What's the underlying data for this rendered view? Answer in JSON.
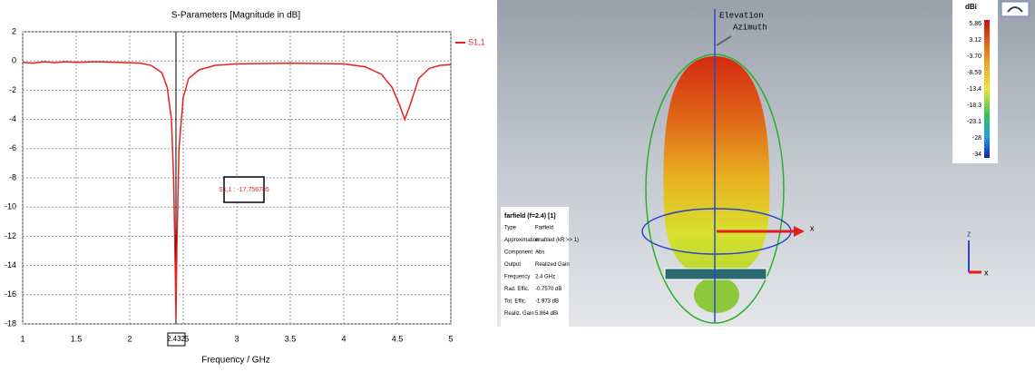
{
  "chart_data": {
    "type": "line",
    "title": "S-Parameters [Magnitude in dB]",
    "x_label": "Frequency / GHz",
    "x": [
      1,
      1.1,
      1.2,
      1.3,
      1.4,
      1.5,
      1.7,
      1.9,
      2.1,
      2.2,
      2.3,
      2.35,
      2.39,
      2.41,
      2.425,
      2.432,
      2.44,
      2.46,
      2.5,
      2.55,
      2.65,
      2.8,
      3,
      3.5,
      4,
      4.2,
      4.35,
      4.45,
      4.52,
      4.57,
      4.62,
      4.7,
      4.8,
      4.9,
      5
    ],
    "series": [
      {
        "name": "S1,1",
        "color": "#e52222",
        "values": [
          -0.1,
          -0.15,
          -0.05,
          -0.12,
          -0.05,
          -0.1,
          -0.05,
          -0.1,
          -0.15,
          -0.3,
          -0.8,
          -1.8,
          -4,
          -8,
          -14,
          -17.76,
          -13,
          -6,
          -2.5,
          -1.2,
          -0.6,
          -0.3,
          -0.2,
          -0.15,
          -0.2,
          -0.4,
          -0.9,
          -1.8,
          -3,
          -4,
          -3,
          -1.2,
          -0.5,
          -0.3,
          -0.25
        ]
      }
    ],
    "xlim": [
      1,
      5
    ],
    "ylim": [
      -18,
      2
    ],
    "xticks": [
      1,
      1.5,
      2,
      2.5,
      3,
      3.5,
      4,
      4.5,
      5
    ],
    "yticks": [
      2,
      0,
      -2,
      -4,
      -6,
      -8,
      -10,
      -12,
      -14,
      -16,
      -18
    ],
    "grid": true,
    "legend": "right",
    "marker_x": 2.432,
    "annotation": "S1,1 : -17.756785"
  },
  "farfield": {
    "elevation": "Elevation",
    "azimuth": "Azimuth",
    "axis_x": "x",
    "triad_z": "z",
    "triad_x": "x",
    "colorbar_unit": "dBi",
    "colorbar_labels": [
      "5.86",
      "3.12",
      "-3.70",
      "-8.59",
      "-13.4",
      "-18.3",
      "-23.1",
      "-28",
      "-34"
    ],
    "info_title": "farfield (f=2.4) [1]",
    "info_rows": [
      [
        "Type",
        "Farfield"
      ],
      [
        "Approximation",
        "enabled (kR >> 1)"
      ],
      [
        "Component",
        "Abs"
      ],
      [
        "Output",
        "Realized Gain"
      ],
      [
        "Frequency",
        "2.4 GHz"
      ],
      [
        "Rad. Effic.",
        "-0.7570 dB"
      ],
      [
        "Tot. Effic.",
        "-1.973 dB"
      ],
      [
        "Realiz. Gain",
        "5.864 dBi"
      ]
    ]
  }
}
